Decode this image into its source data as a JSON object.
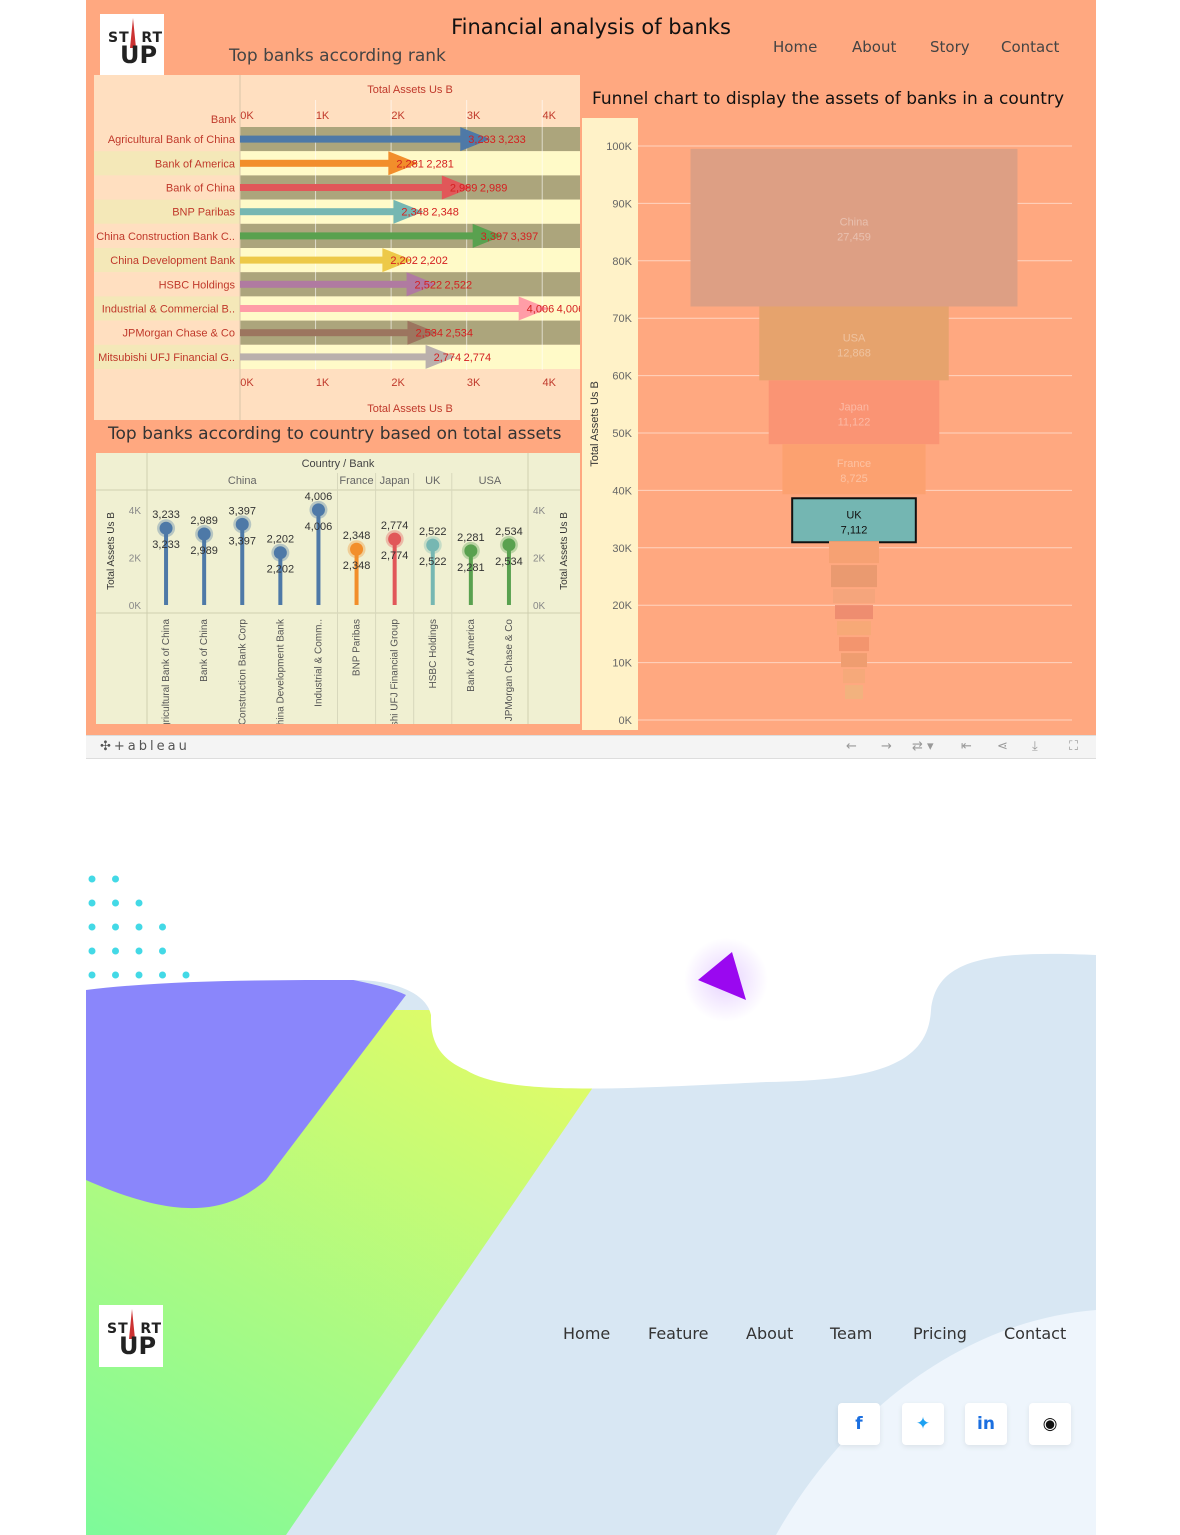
{
  "dashboard": {
    "title": "Financial analysis of banks",
    "subtitle": "Top banks according rank",
    "logo": {
      "st": "ST",
      "rt": "RT",
      "up": "UP"
    },
    "nav": [
      "Home",
      "About",
      "Story",
      "Contact"
    ],
    "section2_title": "Top banks according to country based on total assets",
    "funnel_title": "Funnel chart to display the assets of banks in a country"
  },
  "toolbar": {
    "brand": "+ableau",
    "icons": [
      "undo-icon",
      "redo-icon",
      "revert-icon",
      "pause-icon",
      "share-icon",
      "download-icon",
      "fullscreen-icon"
    ]
  },
  "landing": {
    "nav": [
      "Home",
      "Feature",
      "About",
      "Team",
      "Pricing",
      "Contact"
    ],
    "social": [
      {
        "name": "facebook-icon",
        "glyph": "f",
        "color": "#1b6fe0"
      },
      {
        "name": "twitter-icon",
        "glyph": "✦",
        "color": "#1da1f2"
      },
      {
        "name": "linkedin-icon",
        "glyph": "in",
        "color": "#1b6fe0"
      },
      {
        "name": "github-icon",
        "glyph": "◉",
        "color": "#111111"
      }
    ]
  },
  "chart_data": [
    {
      "type": "bar",
      "title": "Top banks according rank",
      "xlabel": "Total Assets Us B",
      "ylabel": "Bank",
      "xlim": [
        0,
        4500
      ],
      "ticks": [
        "0K",
        "1K",
        "2K",
        "3K",
        "4K"
      ],
      "categories": [
        "Agricultural Bank of China",
        "Bank of America",
        "Bank of China",
        "BNP Paribas",
        "China Construction Bank C..",
        "China Development Bank",
        "HSBC Holdings",
        "Industrial & Commercial B..",
        "JPMorgan Chase & Co",
        "Mitsubishi UFJ Financial G.."
      ],
      "values": [
        3233,
        2281,
        2989,
        2348,
        3397,
        2202,
        2522,
        4006,
        2534,
        2774
      ],
      "labels": [
        "3,233",
        "2,281",
        "2,989",
        "2,348",
        "3,397",
        "2,202",
        "2,522",
        "4,006",
        "2,534",
        "2,774"
      ],
      "colors": [
        "#4e79a7",
        "#f28e2b",
        "#e15759",
        "#76b7b2",
        "#59a14f",
        "#edc948",
        "#b07aa1",
        "#ff9da7",
        "#9c755f",
        "#bab0ac"
      ]
    },
    {
      "type": "scatter",
      "title": "Top banks according to country based on total assets",
      "header": "Country / Bank",
      "ylabel": "Total Assets Us B",
      "ylim": [
        0,
        4000
      ],
      "yticks": [
        "4K",
        "2K",
        "0K"
      ],
      "countries": [
        {
          "name": "China",
          "banks": [
            "Agricultural Bank of China",
            "Bank of China",
            "China Construction Bank Corp",
            "China Development Bank",
            "Industrial & Comm.."
          ],
          "values": [
            3233,
            2989,
            3397,
            2202,
            4006
          ],
          "labels": [
            "3,233",
            "2,989",
            "3,397",
            "2,202",
            "4,006"
          ],
          "color": "#4e79a7"
        },
        {
          "name": "France",
          "banks": [
            "BNP Paribas"
          ],
          "values": [
            2348
          ],
          "labels": [
            "2,348"
          ],
          "color": "#f28e2b"
        },
        {
          "name": "Japan",
          "banks": [
            "Mitsubishi UFJ Financial Group"
          ],
          "values": [
            2774
          ],
          "labels": [
            "2,774"
          ],
          "color": "#e15759"
        },
        {
          "name": "UK",
          "banks": [
            "HSBC Holdings"
          ],
          "values": [
            2522
          ],
          "labels": [
            "2,522"
          ],
          "color": "#76b7b2"
        },
        {
          "name": "USA",
          "banks": [
            "Bank of America",
            "JPMorgan Chase & Co"
          ],
          "values": [
            2281,
            2534
          ],
          "labels": [
            "2,281",
            "2,534"
          ],
          "color": "#59a14f"
        }
      ]
    },
    {
      "type": "bar",
      "title": "Funnel chart to display the assets of banks in a country",
      "ylabel": "Total Assets Us B",
      "ylim": [
        0,
        100000
      ],
      "yticks": [
        "100K",
        "90K",
        "80K",
        "70K",
        "60K",
        "50K",
        "40K",
        "30K",
        "20K",
        "10K",
        "0K"
      ],
      "categories": [
        "China",
        "USA",
        "Japan",
        "France",
        "UK"
      ],
      "values": [
        27459,
        12868,
        11122,
        8725,
        7112
      ],
      "labels": [
        "27,459",
        "12,868",
        "11,122",
        "8,725",
        "7,112"
      ],
      "highlighted": "UK"
    }
  ]
}
